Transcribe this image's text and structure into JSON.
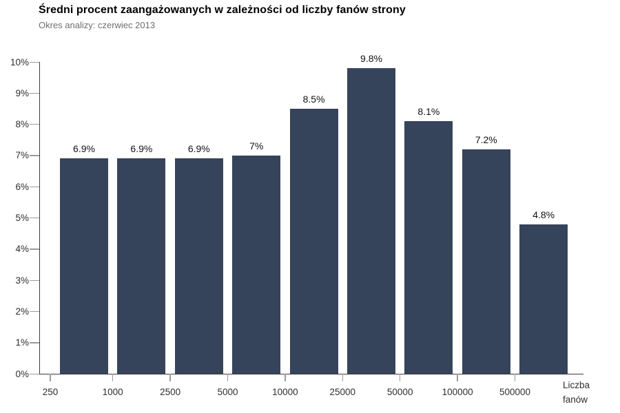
{
  "chart_data": {
    "type": "bar",
    "title": "Średni procent zaangażowanych w zależności od liczby fanów strony",
    "subtitle": "Okres analizy: czerwiec 2013",
    "values": [
      6.9,
      6.9,
      6.9,
      7,
      8.5,
      9.8,
      8.1,
      7.2,
      4.8
    ],
    "bar_labels": [
      "6.9%",
      "6.9%",
      "6.9%",
      "7%",
      "8.5%",
      "9.8%",
      "8.1%",
      "7.2%",
      "4.8%"
    ],
    "x_tick_labels": [
      "250",
      "1000",
      "2500",
      "5000",
      "10000",
      "25000",
      "50000",
      "100000",
      "500000"
    ],
    "y_tick_labels": [
      "0%",
      "1%",
      "2%",
      "3%",
      "4%",
      "5%",
      "6%",
      "7%",
      "8%",
      "9%",
      "10%"
    ],
    "ylim": [
      0,
      10
    ],
    "xlabel": "Liczba fanów",
    "xlabel_lines": [
      "Liczba",
      "fanów"
    ],
    "ylabel": "",
    "grid": false,
    "legend": "none",
    "x_ticks_at_bar_boundaries": true,
    "colors": {
      "bar": "#35445a",
      "axis": "#3a3a3a",
      "tick": "#9a9a9a",
      "title": "#000000",
      "subtitle": "#6e6e6e",
      "bar_label": "#111111",
      "tick_label": "#2e2e2e",
      "background": "#ffffff"
    }
  }
}
